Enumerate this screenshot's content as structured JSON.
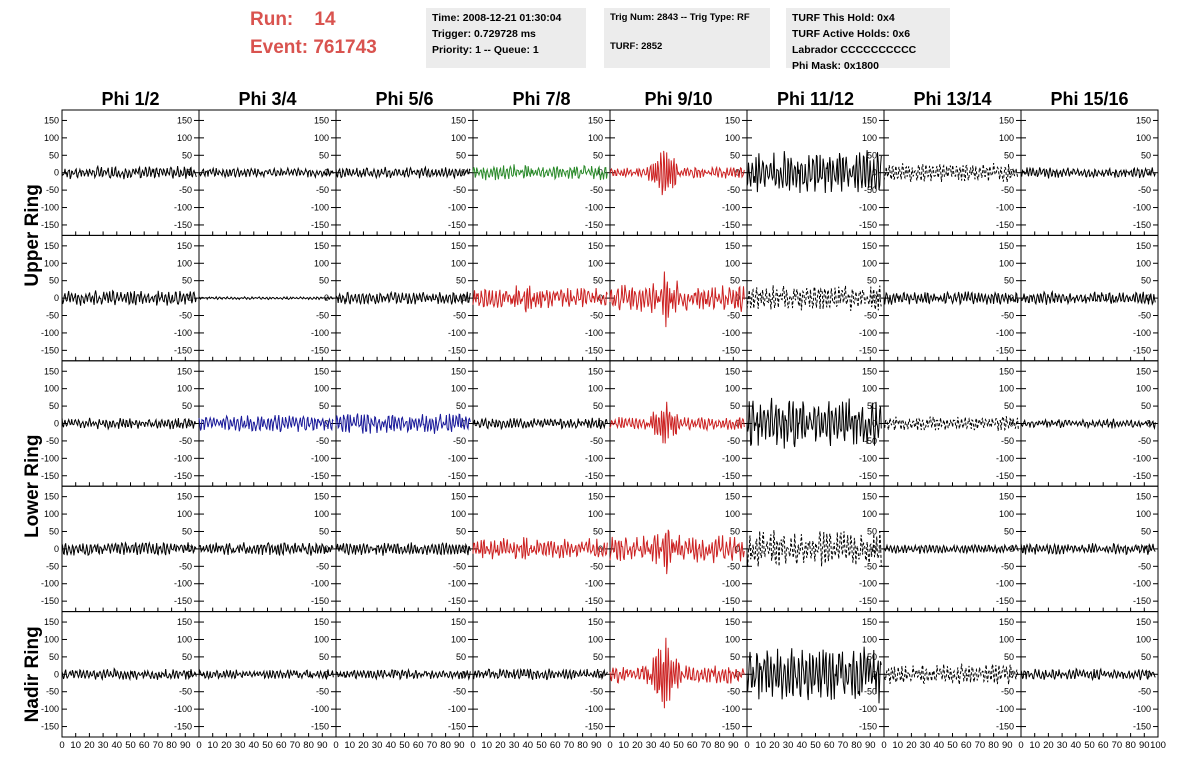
{
  "header": {
    "run_label": "Run:",
    "run_value": "14",
    "event_label": "Event:",
    "event_value": "761743"
  },
  "info_panels": {
    "time": "Time: 2008-12-21 01:30:04",
    "trigger": "Trigger: 0.729728 ms",
    "priority": "Priority: 1 -- Queue: 1",
    "trig_num": "Trig Num: 2843 -- Trig Type: RF",
    "turf": "TURF: 2852",
    "turf_hold": "TURF This Hold: 0x4",
    "turf_active": "TURF Active Holds: 0x6",
    "labrador": "Labrador CCCCCCCCCC",
    "phi_mask": "Phi Mask: 0x1800"
  },
  "chart_data": {
    "type": "line",
    "columns": [
      "Phi 1/2",
      "Phi 3/4",
      "Phi 5/6",
      "Phi 7/8",
      "Phi 9/10",
      "Phi 11/12",
      "Phi 13/14",
      "Phi 15/16"
    ],
    "rows": [
      "Upper Ring",
      "Lower Ring",
      "Nadir Ring"
    ],
    "y_ticks": [
      150,
      100,
      50,
      0,
      -50,
      -100,
      -150
    ],
    "ylim": [
      -180,
      180
    ],
    "x_ticks": [
      0,
      10,
      20,
      30,
      40,
      50,
      60,
      70,
      80,
      90,
      100
    ],
    "xlim": [
      0,
      100
    ],
    "waveform_x_range": [
      0,
      98
    ],
    "grid": false,
    "colors": {
      "default": "#000000",
      "green": "#2a8a2a",
      "red": "#cc2222",
      "blue": "#1a1a9a"
    },
    "panels": [
      {
        "row": 0,
        "col": 0,
        "color": "default",
        "style": "solid",
        "amp": 14,
        "pulse": 0
      },
      {
        "row": 0,
        "col": 1,
        "color": "default",
        "style": "solid",
        "amp": 10,
        "pulse": 0
      },
      {
        "row": 0,
        "col": 2,
        "color": "default",
        "style": "solid",
        "amp": 12,
        "pulse": 0
      },
      {
        "row": 0,
        "col": 3,
        "color": "green",
        "style": "solid",
        "amp": 16,
        "pulse": 8
      },
      {
        "row": 0,
        "col": 4,
        "color": "red",
        "style": "solid",
        "amp": 12,
        "pulse": 60
      },
      {
        "row": 0,
        "col": 5,
        "color": "default",
        "style": "solid",
        "amp": 48,
        "pulse": 10
      },
      {
        "row": 0,
        "col": 6,
        "color": "default",
        "style": "dashed",
        "amp": 20,
        "pulse": 0
      },
      {
        "row": 0,
        "col": 7,
        "color": "default",
        "style": "solid",
        "amp": 12,
        "pulse": 0
      },
      {
        "row": 1,
        "col": 0,
        "color": "default",
        "style": "solid",
        "amp": 16,
        "pulse": 0
      },
      {
        "row": 1,
        "col": 1,
        "color": "default",
        "style": "solid",
        "amp": 3,
        "pulse": 0
      },
      {
        "row": 1,
        "col": 2,
        "color": "default",
        "style": "solid",
        "amp": 14,
        "pulse": 0
      },
      {
        "row": 1,
        "col": 3,
        "color": "red",
        "style": "solid",
        "amp": 22,
        "pulse": 25
      },
      {
        "row": 1,
        "col": 4,
        "color": "red",
        "style": "solid",
        "amp": 30,
        "pulse": 50
      },
      {
        "row": 1,
        "col": 5,
        "color": "default",
        "style": "dashed",
        "amp": 28,
        "pulse": 0
      },
      {
        "row": 1,
        "col": 6,
        "color": "default",
        "style": "solid",
        "amp": 14,
        "pulse": 0
      },
      {
        "row": 1,
        "col": 7,
        "color": "default",
        "style": "solid",
        "amp": 14,
        "pulse": 0
      },
      {
        "row": 2,
        "col": 0,
        "color": "default",
        "style": "solid",
        "amp": 12,
        "pulse": 0
      },
      {
        "row": 2,
        "col": 1,
        "color": "blue",
        "style": "solid",
        "amp": 18,
        "pulse": 0
      },
      {
        "row": 2,
        "col": 2,
        "color": "blue",
        "style": "solid",
        "amp": 22,
        "pulse": 0
      },
      {
        "row": 2,
        "col": 3,
        "color": "default",
        "style": "solid",
        "amp": 12,
        "pulse": 0
      },
      {
        "row": 2,
        "col": 4,
        "color": "red",
        "style": "solid",
        "amp": 14,
        "pulse": 50
      },
      {
        "row": 2,
        "col": 5,
        "color": "default",
        "style": "solid",
        "amp": 55,
        "pulse": 15
      },
      {
        "row": 2,
        "col": 6,
        "color": "default",
        "style": "dashed",
        "amp": 16,
        "pulse": 0
      },
      {
        "row": 2,
        "col": 7,
        "color": "default",
        "style": "solid",
        "amp": 10,
        "pulse": 0
      },
      {
        "row": 3,
        "col": 0,
        "color": "default",
        "style": "solid",
        "amp": 14,
        "pulse": 0
      },
      {
        "row": 3,
        "col": 1,
        "color": "default",
        "style": "solid",
        "amp": 14,
        "pulse": 0
      },
      {
        "row": 3,
        "col": 2,
        "color": "default",
        "style": "solid",
        "amp": 14,
        "pulse": 0
      },
      {
        "row": 3,
        "col": 3,
        "color": "red",
        "style": "solid",
        "amp": 22,
        "pulse": 12
      },
      {
        "row": 3,
        "col": 4,
        "color": "red",
        "style": "solid",
        "amp": 30,
        "pulse": 50
      },
      {
        "row": 3,
        "col": 5,
        "color": "default",
        "style": "dashed",
        "amp": 40,
        "pulse": 0
      },
      {
        "row": 3,
        "col": 6,
        "color": "default",
        "style": "solid",
        "amp": 10,
        "pulse": 0
      },
      {
        "row": 3,
        "col": 7,
        "color": "default",
        "style": "solid",
        "amp": 12,
        "pulse": 0
      },
      {
        "row": 4,
        "col": 0,
        "color": "default",
        "style": "solid",
        "amp": 12,
        "pulse": 0
      },
      {
        "row": 4,
        "col": 1,
        "color": "default",
        "style": "solid",
        "amp": 10,
        "pulse": 0
      },
      {
        "row": 4,
        "col": 2,
        "color": "default",
        "style": "solid",
        "amp": 10,
        "pulse": 0
      },
      {
        "row": 4,
        "col": 3,
        "color": "default",
        "style": "solid",
        "amp": 12,
        "pulse": 0
      },
      {
        "row": 4,
        "col": 4,
        "color": "red",
        "style": "solid",
        "amp": 20,
        "pulse": 90
      },
      {
        "row": 4,
        "col": 5,
        "color": "default",
        "style": "solid",
        "amp": 60,
        "pulse": 10
      },
      {
        "row": 4,
        "col": 6,
        "color": "default",
        "style": "dashed",
        "amp": 22,
        "pulse": 0
      },
      {
        "row": 4,
        "col": 7,
        "color": "default",
        "style": "solid",
        "amp": 12,
        "pulse": 0
      }
    ]
  }
}
